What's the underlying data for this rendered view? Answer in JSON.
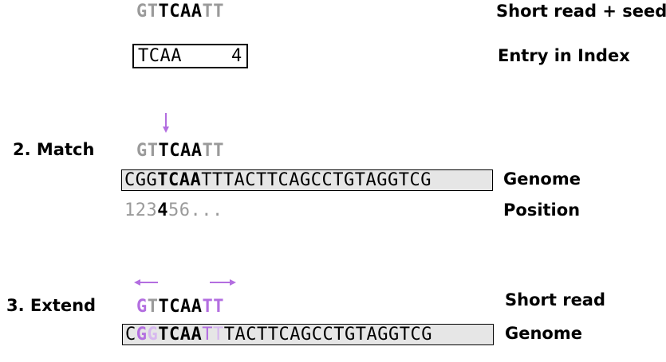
{
  "colors": {
    "purple": "#b36ee0",
    "light_purple": "#d7b8ef",
    "gray": "#9a9a9a",
    "genome_fill": "#e6e6e6"
  },
  "step1": {
    "read_seed": [
      "G",
      "T",
      "T",
      "C",
      "A",
      "A",
      "T",
      "T"
    ],
    "label_read_seed": "Short read + seed",
    "index_key": "TCAA",
    "index_value": "4",
    "label_index": "Entry in Index"
  },
  "step2": {
    "title": "2. Match",
    "read": [
      "G",
      "T",
      "T",
      "C",
      "A",
      "A",
      "T",
      "T"
    ],
    "genome": [
      "C",
      "G",
      "G",
      "T",
      "C",
      "A",
      "A",
      "T",
      "T",
      "T",
      "A",
      "C",
      "T",
      "T",
      "C",
      "A",
      "G",
      "C",
      "C",
      "T",
      "G",
      "T",
      "A",
      "G",
      "G",
      "T",
      "C",
      "G"
    ],
    "position": [
      "1",
      "2",
      "3",
      "4",
      "5",
      "6",
      "..."
    ],
    "label_genome": "Genome",
    "label_position": "Position",
    "arrow_icon": "down-arrow-icon"
  },
  "step3": {
    "title": "3. Extend",
    "read": [
      "G",
      "T",
      "T",
      "C",
      "A",
      "A",
      "T",
      "T"
    ],
    "genome": [
      "C",
      "G",
      "G",
      "T",
      "C",
      "A",
      "A",
      "T",
      "T",
      "T",
      "A",
      "C",
      "T",
      "T",
      "C",
      "A",
      "G",
      "C",
      "C",
      "T",
      "G",
      "T",
      "A",
      "G",
      "G",
      "T",
      "C",
      "G"
    ],
    "label_read": "Short read",
    "label_genome": "Genome",
    "arrow_icons": [
      "left-arrow-icon",
      "right-arrow-icon"
    ]
  }
}
